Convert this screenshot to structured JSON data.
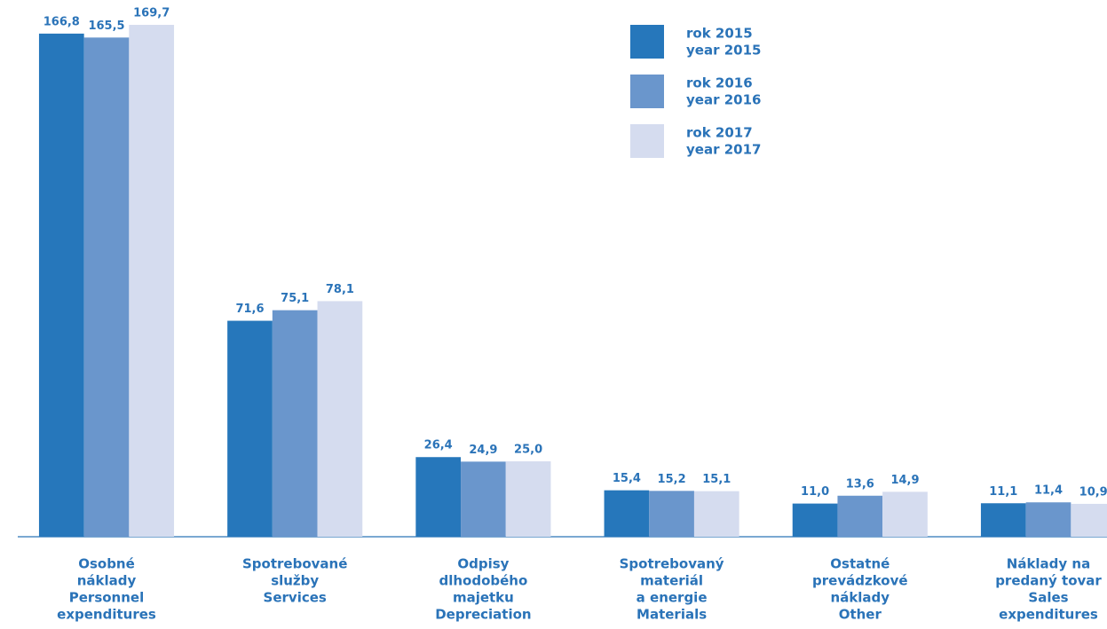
{
  "chart_data": {
    "type": "bar",
    "categories": [
      [
        "Osobné",
        "náklady",
        "Personnel",
        "expenditures"
      ],
      [
        "Spotrebované",
        "služby",
        "Services"
      ],
      [
        "Odpisy",
        "dlhodobého",
        "majetku",
        "Depreciation"
      ],
      [
        "Spotrebovaný",
        "materiál",
        "a energie",
        "Materials"
      ],
      [
        "Ostatné",
        "prevádzkové",
        "náklady",
        "Other"
      ],
      [
        "Náklady na",
        "predaný tovar",
        "Sales",
        "expenditures"
      ]
    ],
    "series": [
      {
        "name": [
          "rok 2015",
          "year 2015"
        ],
        "color": "#2677bb",
        "values": [
          166.8,
          71.6,
          26.4,
          15.4,
          11.0,
          11.1
        ],
        "value_labels": [
          "166,8",
          "71,6",
          "26,4",
          "15,4",
          "11,0",
          "11,1"
        ]
      },
      {
        "name": [
          "rok 2016",
          "year 2016"
        ],
        "color": "#6a96cc",
        "values": [
          165.5,
          75.1,
          24.9,
          15.2,
          13.6,
          11.4
        ],
        "value_labels": [
          "165,5",
          "75,1",
          "24,9",
          "15,2",
          "13,6",
          "11,4"
        ]
      },
      {
        "name": [
          "rok 2017",
          "year 2017"
        ],
        "color": "#d5dcef",
        "values": [
          169.7,
          78.1,
          25.0,
          15.1,
          14.9,
          10.9
        ],
        "value_labels": [
          "169,7",
          "78,1",
          "25,0",
          "15,1",
          "14,9",
          "10,9"
        ]
      }
    ],
    "ylim": [
      0,
      175
    ],
    "legend": "top-right"
  }
}
